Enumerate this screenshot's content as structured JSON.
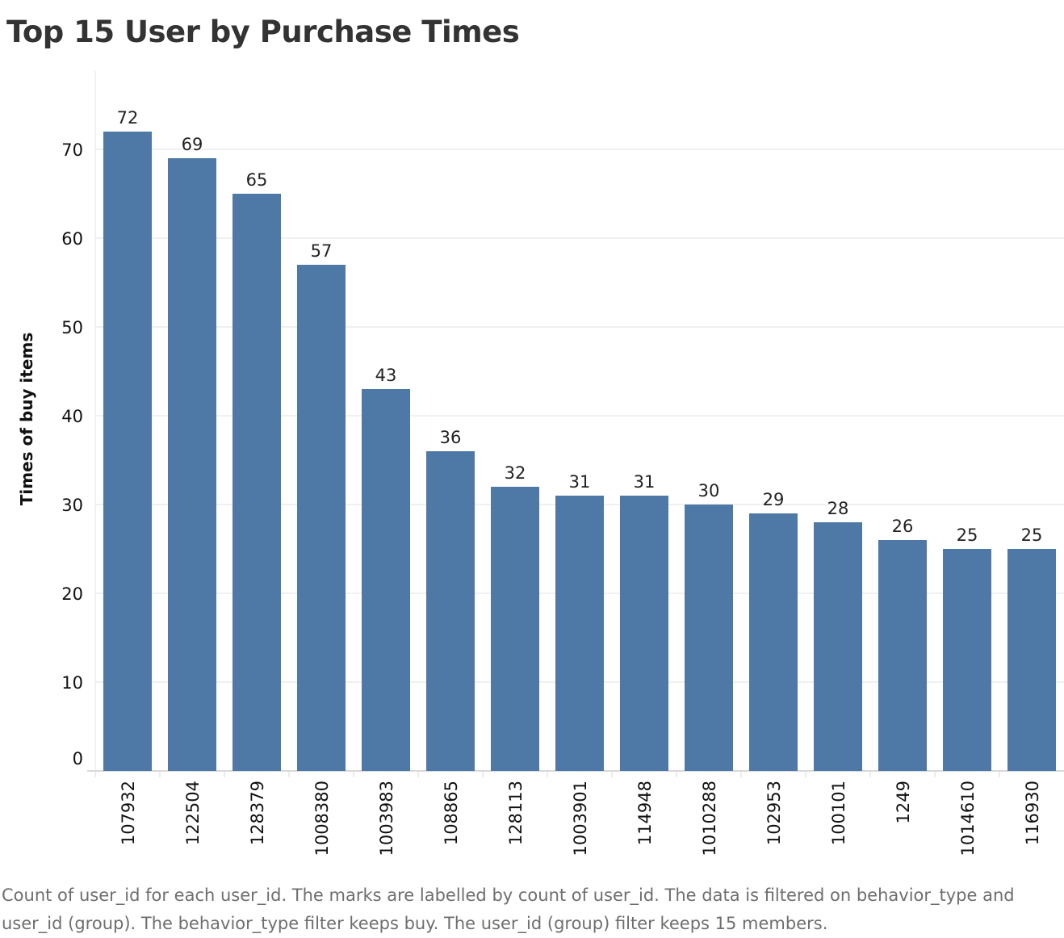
{
  "chart_data": {
    "type": "bar",
    "title": "Top 15 User by Purchase Times",
    "xlabel": "",
    "ylabel": "Times of buy items",
    "categories": [
      "107932",
      "122504",
      "128379",
      "1008380",
      "1003983",
      "108865",
      "128113",
      "1003901",
      "114948",
      "1010288",
      "102953",
      "100101",
      "1249",
      "1014610",
      "116930"
    ],
    "values": [
      72,
      69,
      65,
      57,
      43,
      36,
      32,
      31,
      31,
      30,
      29,
      28,
      26,
      25,
      25
    ],
    "yticks": [
      0,
      10,
      20,
      30,
      40,
      50,
      60,
      70
    ],
    "ylim": [
      0,
      72
    ],
    "grid": true,
    "bar_color": "#4e79a7",
    "caption": "Count of user_id for each user_id.  The marks are labelled by count of user_id. The data is filtered on behavior_type and user_id (group). The behavior_type filter keeps buy. The user_id (group) filter keeps 15 members."
  }
}
